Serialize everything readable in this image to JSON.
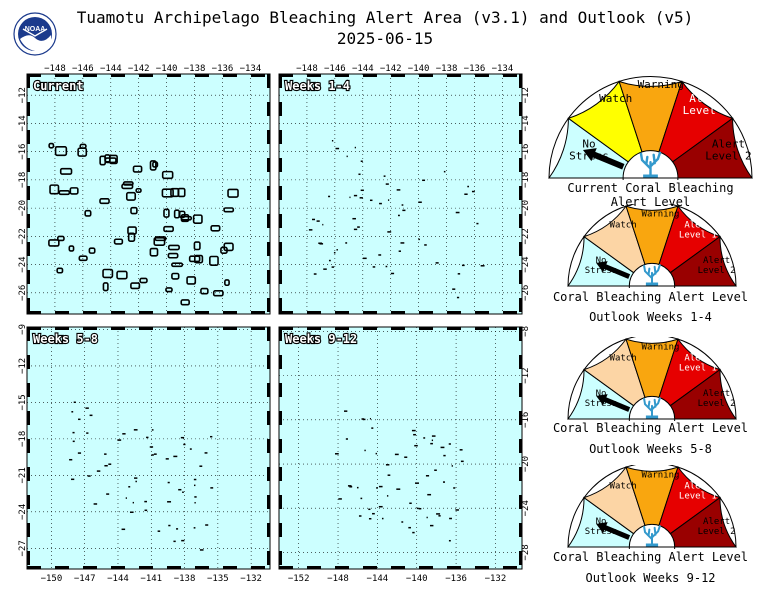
{
  "header": {
    "title": "Tuamotu Archipelago Bleaching Alert Area (v3.1) and Outlook (v5)",
    "date": "2025-06-15",
    "logo_text": "NOAA"
  },
  "colors": {
    "ocean": "#ccffff",
    "no_stress": "#ccffff",
    "watch_current": "#ffff00",
    "watch_outlook": "#fcd5a5",
    "warning": "#f9a60f",
    "alert1": "#e60000",
    "alert2": "#990000",
    "coral": "#3399cc"
  },
  "maps": [
    {
      "label": "Current",
      "x_ticks": [
        -148,
        -146,
        -144,
        -142,
        -140,
        -138,
        -136,
        -134
      ],
      "x_tick_side": "top",
      "y_ticks": [
        -12,
        -14,
        -16,
        -18,
        -20,
        -22,
        -24,
        -26
      ],
      "y_tick_side": "left",
      "lon_range": [
        -150,
        -132.6
      ],
      "lat_range": [
        -10.5,
        -27.5
      ]
    },
    {
      "label": "Weeks 1-4",
      "x_ticks": [
        -148,
        -146,
        -144,
        -142,
        -140,
        -138,
        -136,
        -134
      ],
      "x_tick_side": "top",
      "y_ticks": [
        -12,
        -14,
        -16,
        -18,
        -20,
        -22,
        -24,
        -26
      ],
      "y_tick_side": "right",
      "lon_range": [
        -150,
        -132.6
      ],
      "lat_range": [
        -10.5,
        -27.5
      ]
    },
    {
      "label": "Weeks 5-8",
      "x_ticks": [
        -150,
        -147,
        -144,
        -141,
        -138,
        -135,
        -132
      ],
      "x_tick_side": "bottom",
      "y_ticks": [
        -9,
        -12,
        -15,
        -18,
        -21,
        -24,
        -27
      ],
      "y_tick_side": "left",
      "lon_range": [
        -152.2,
        -130.3
      ],
      "lat_range": [
        -8.8,
        -28.7
      ]
    },
    {
      "label": "Weeks 9-12",
      "x_ticks": [
        -152,
        -148,
        -144,
        -140,
        -136,
        -132
      ],
      "x_tick_side": "bottom",
      "y_ticks": [
        -8,
        -12,
        -16,
        -20,
        -24,
        -28
      ],
      "y_tick_side": "right",
      "lon_range": [
        -154,
        -129.3
      ],
      "lat_range": [
        -7.6,
        -29.5
      ]
    }
  ],
  "gauges": [
    {
      "id": "current",
      "levels": [
        "No Stress",
        "Watch",
        "Warning",
        "Alert Level 1",
        "Alert Level 2"
      ],
      "caption1": "Current Coral Bleaching Alert Level",
      "caption2": "",
      "level": "No Stress"
    },
    {
      "id": "w1_4",
      "levels": [
        "No Stress",
        "Watch",
        "Warning",
        "Alert Level 1",
        "Alert Level 2"
      ],
      "caption1": "Coral Bleaching Alert Level",
      "caption2": "Outlook Weeks 1-4",
      "level": "No Stress"
    },
    {
      "id": "w5_8",
      "levels": [
        "No Stress",
        "Watch",
        "Warning",
        "Alert Level 1",
        "Alert Level 2"
      ],
      "caption1": "Coral Bleaching Alert Level",
      "caption2": "Outlook Weeks 5-8",
      "level": "No Stress"
    },
    {
      "id": "w9_12",
      "levels": [
        "No Stress",
        "Watch",
        "Warning",
        "Alert Level 1",
        "Alert Level 2"
      ],
      "caption1": "Coral Bleaching Alert Level",
      "caption2": "Outlook Weeks 9-12",
      "level": "No Stress"
    }
  ]
}
